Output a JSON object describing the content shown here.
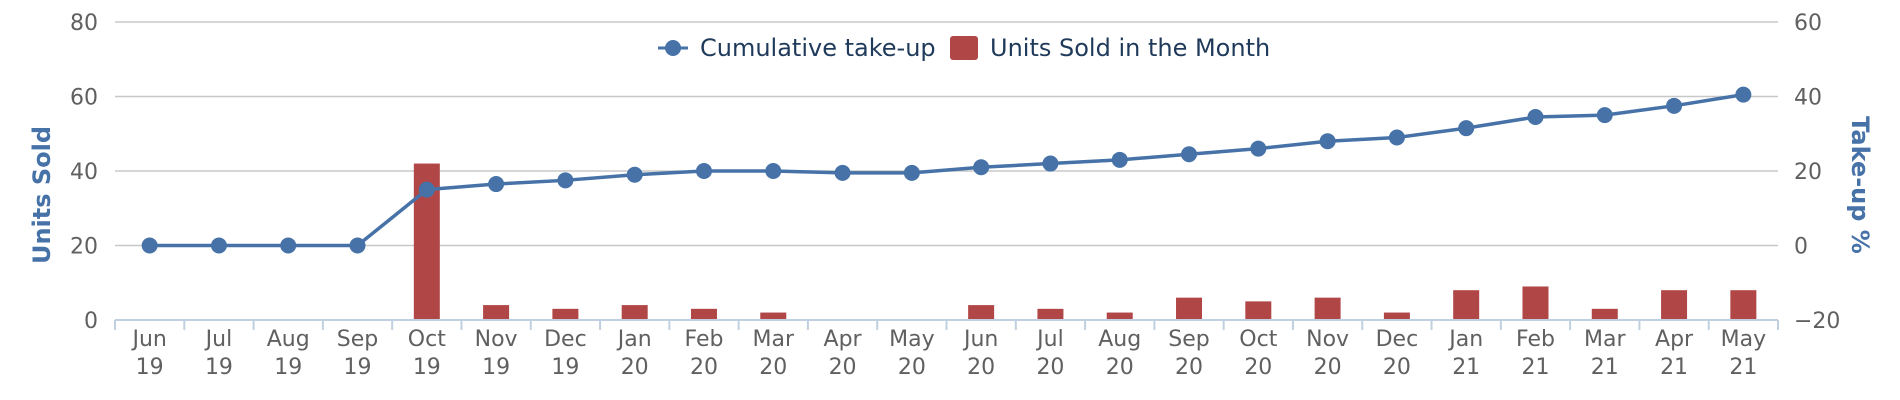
{
  "chart_data": {
    "type": "bar+line",
    "categories": [
      [
        "Jun",
        "19"
      ],
      [
        "Jul",
        "19"
      ],
      [
        "Aug",
        "19"
      ],
      [
        "Sep",
        "19"
      ],
      [
        "Oct",
        "19"
      ],
      [
        "Nov",
        "19"
      ],
      [
        "Dec",
        "19"
      ],
      [
        "Jan",
        "20"
      ],
      [
        "Feb",
        "20"
      ],
      [
        "Mar",
        "20"
      ],
      [
        "Apr",
        "20"
      ],
      [
        "May",
        "20"
      ],
      [
        "Jun",
        "20"
      ],
      [
        "Jul",
        "20"
      ],
      [
        "Aug",
        "20"
      ],
      [
        "Sep",
        "20"
      ],
      [
        "Oct",
        "20"
      ],
      [
        "Nov",
        "20"
      ],
      [
        "Dec",
        "20"
      ],
      [
        "Jan",
        "21"
      ],
      [
        "Feb",
        "21"
      ],
      [
        "Mar",
        "21"
      ],
      [
        "Apr",
        "21"
      ],
      [
        "May",
        "21"
      ]
    ],
    "series": [
      {
        "name": "Units Sold in the Month",
        "type": "bar",
        "axis": "left",
        "color": "#b04646",
        "values": [
          0,
          0,
          0,
          0,
          42,
          4,
          3,
          4,
          3,
          2,
          0,
          0,
          4,
          3,
          2,
          6,
          5,
          6,
          2,
          8,
          9,
          3,
          8,
          8
        ]
      },
      {
        "name": "Cumulative take-up",
        "type": "line",
        "axis": "right",
        "color": "#4672a8",
        "values": [
          0,
          0,
          0,
          0,
          15,
          16.5,
          17.5,
          19,
          20,
          20,
          19.5,
          19.5,
          21,
          22,
          23,
          24.5,
          26,
          28,
          29,
          31.5,
          34.5,
          35,
          37.5,
          40.5
        ]
      }
    ],
    "left_axis": {
      "label": "Units Sold",
      "min": 0,
      "max": 80,
      "ticks": [
        0,
        20,
        40,
        60,
        80
      ]
    },
    "right_axis": {
      "label": "Take-up %",
      "min": -20,
      "max": 60,
      "ticks": [
        -20,
        0,
        20,
        40,
        60
      ]
    },
    "legend": {
      "position": "top-center",
      "items": [
        "Cumulative take-up",
        "Units Sold in the Month"
      ]
    },
    "grid": true
  }
}
